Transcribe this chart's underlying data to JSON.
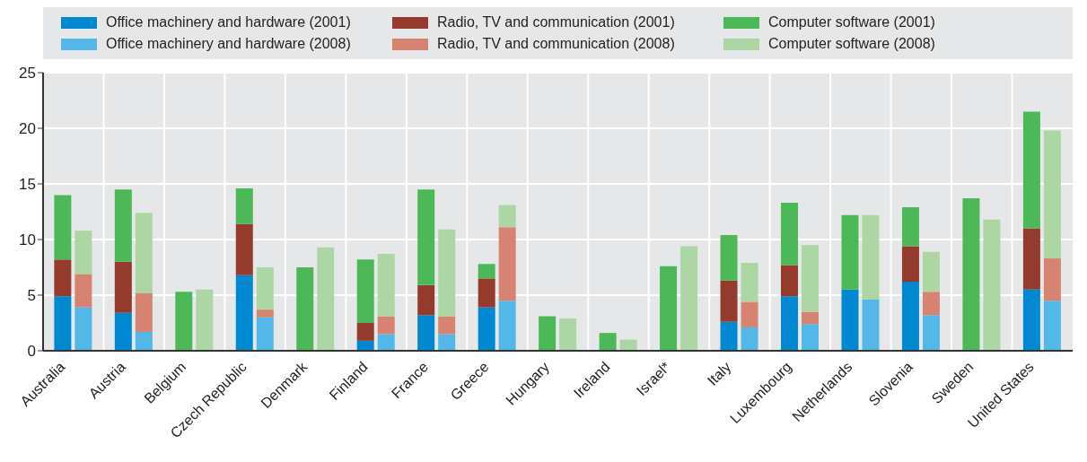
{
  "chart_data": {
    "type": "bar",
    "stacked": true,
    "categories": [
      "Australia",
      null,
      "Austria",
      null,
      "Belgium",
      null,
      "Czech Republic",
      null,
      "Denmark",
      null,
      "Finland",
      null,
      "France",
      null,
      "Greece",
      null,
      "Hungary",
      null,
      "Ireland",
      null,
      "Israel*",
      null,
      "Italy",
      null,
      "Luxembourg",
      null,
      "Netherlands",
      null,
      "Slovenia",
      null,
      "Sweden",
      null,
      "United States",
      null
    ],
    "series": [
      {
        "name": "Office machinery and hardware (2001)",
        "color": "#0089d0",
        "values": [
          4.9,
          null,
          3.4,
          null,
          null,
          null,
          6.8,
          null,
          null,
          null,
          0.9,
          null,
          3.2,
          null,
          3.9,
          null,
          null,
          null,
          null,
          null,
          null,
          null,
          2.6,
          null,
          4.9,
          null,
          5.5,
          null,
          6.2,
          null,
          null,
          null,
          5.5,
          null
        ]
      },
      {
        "name": "Radio, TV and communication (2001)",
        "color": "#953b2e",
        "values": [
          3.3,
          null,
          4.6,
          null,
          null,
          null,
          4.6,
          null,
          null,
          null,
          1.6,
          null,
          2.7,
          null,
          2.6,
          null,
          null,
          null,
          null,
          null,
          null,
          null,
          3.7,
          null,
          2.8,
          null,
          null,
          null,
          3.2,
          null,
          null,
          null,
          5.5,
          null
        ]
      },
      {
        "name": "Computer software (2001)",
        "color": "#4cb858",
        "values": [
          5.8,
          null,
          6.5,
          null,
          5.3,
          null,
          3.2,
          null,
          7.5,
          null,
          5.7,
          null,
          8.6,
          null,
          1.3,
          null,
          3.1,
          null,
          1.6,
          null,
          7.6,
          null,
          4.1,
          null,
          5.6,
          null,
          6.7,
          null,
          3.5,
          null,
          13.7,
          null,
          10.5,
          null
        ]
      },
      {
        "name": "Office machinery and hardware (2008)",
        "color": "#53b7e8",
        "values": [
          null,
          3.9,
          null,
          1.7,
          null,
          null,
          null,
          3.0,
          null,
          null,
          null,
          1.5,
          null,
          1.5,
          null,
          4.5,
          null,
          null,
          null,
          null,
          null,
          null,
          null,
          2.1,
          null,
          2.4,
          null,
          4.6,
          null,
          3.2,
          null,
          null,
          null,
          4.5
        ]
      },
      {
        "name": "Radio, TV and communication (2008)",
        "color": "#d68372",
        "values": [
          null,
          3.0,
          null,
          3.5,
          null,
          null,
          null,
          0.7,
          null,
          null,
          null,
          1.6,
          null,
          1.6,
          null,
          6.6,
          null,
          null,
          null,
          null,
          null,
          null,
          null,
          2.3,
          null,
          1.1,
          null,
          null,
          null,
          2.1,
          null,
          null,
          null,
          3.8
        ]
      },
      {
        "name": "Computer software (2008)",
        "color": "#acd7a4",
        "values": [
          null,
          3.9,
          null,
          7.2,
          null,
          5.5,
          null,
          3.8,
          null,
          9.3,
          null,
          5.6,
          null,
          7.8,
          null,
          2.0,
          null,
          2.9,
          null,
          1.0,
          null,
          9.4,
          null,
          3.5,
          null,
          6.0,
          null,
          7.6,
          null,
          3.6,
          null,
          11.8,
          null,
          11.5
        ]
      }
    ],
    "ylim": [
      0,
      25
    ],
    "yticks": [
      0,
      5,
      10,
      15,
      20,
      25
    ],
    "grid": true,
    "legend": "top"
  }
}
